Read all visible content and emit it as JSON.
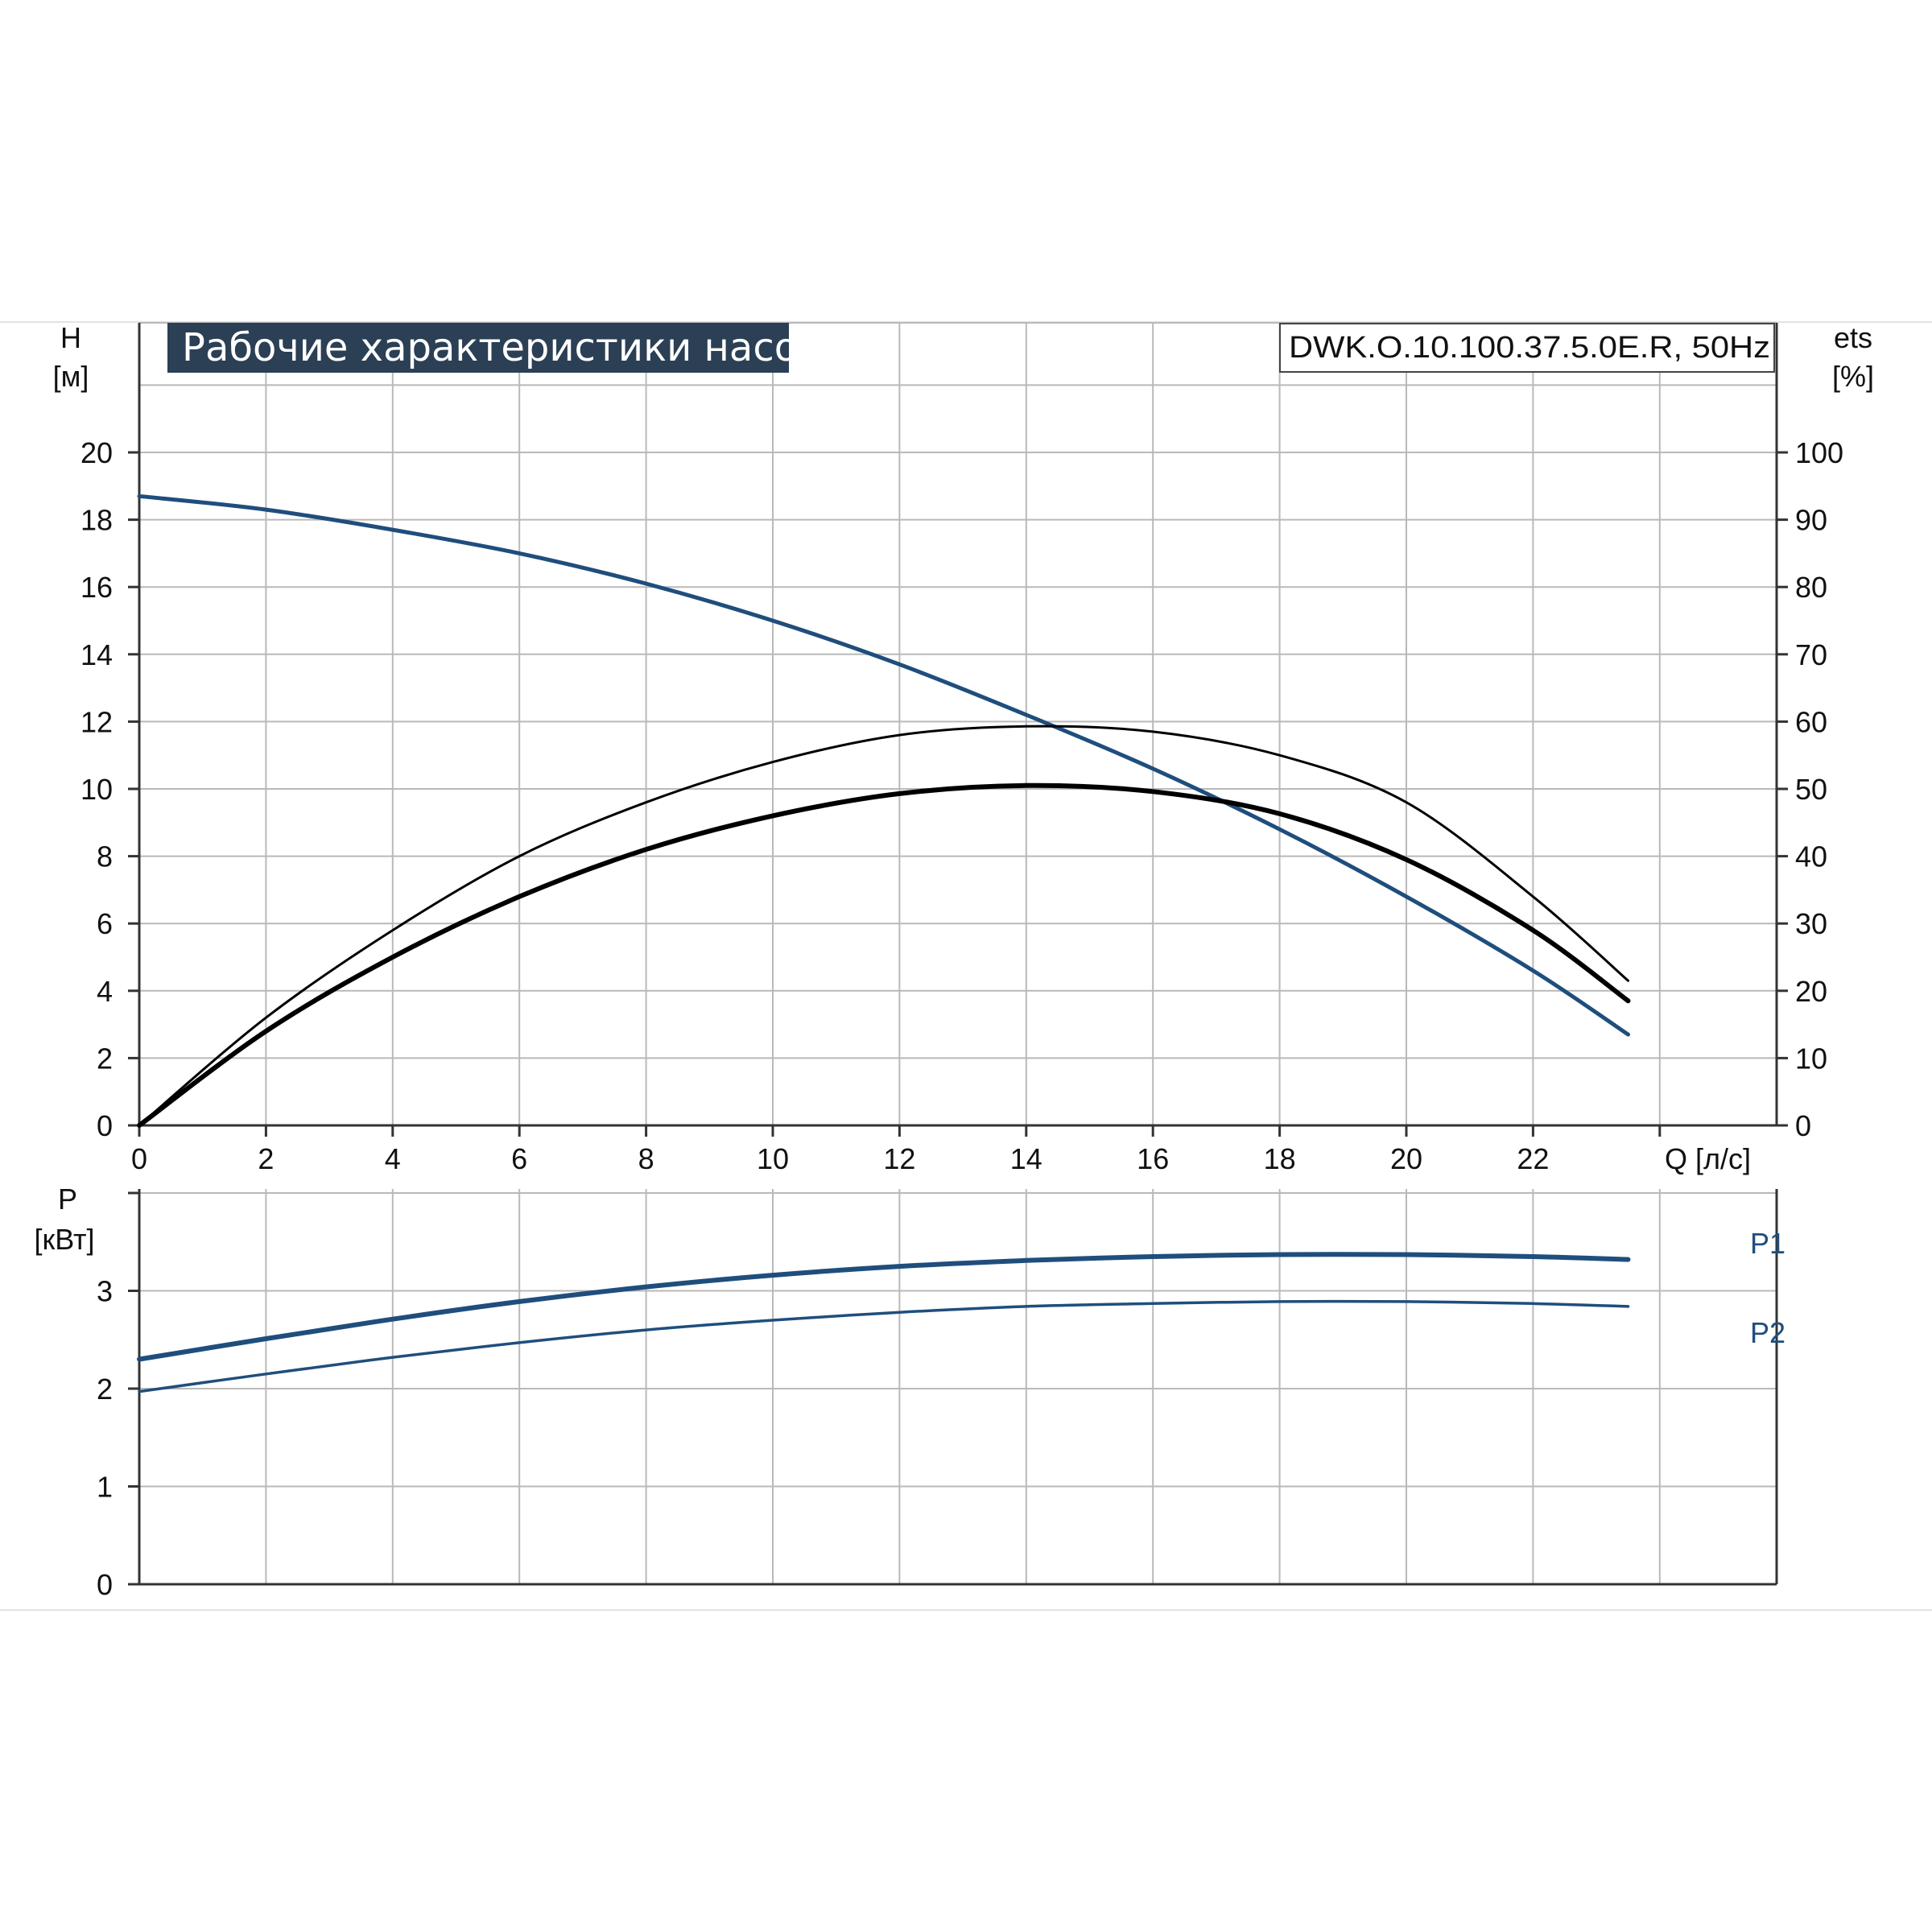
{
  "colors": {
    "blue": "#1f4e7d",
    "black": "#000000",
    "banner_bg": "#2b3f55",
    "grid": "#b9b9b9"
  },
  "chart_data": [
    {
      "type": "line",
      "title": "Рабочие характеристики насоса",
      "model": "DWK.O.10.100.37.5.0E.R, 50Hz",
      "xlabel": "Q [л/с]",
      "ylabel_left": "H",
      "ylabel_left_unit": "[м]",
      "ylabel_right": "ets",
      "ylabel_right_unit": "[%]",
      "xlim": [
        0,
        24
      ],
      "ylim_left": [
        0,
        22
      ],
      "ylim_right": [
        0,
        110
      ],
      "grid": true,
      "x_ticks": [
        "0",
        "2",
        "4",
        "6",
        "8",
        "10",
        "12",
        "14",
        "16",
        "18",
        "20",
        "22"
      ],
      "y_ticks_left": [
        "0",
        "2",
        "4",
        "6",
        "8",
        "10",
        "12",
        "14",
        "16",
        "18",
        "20"
      ],
      "y_ticks_right": [
        "0",
        "10",
        "20",
        "30",
        "40",
        "50",
        "60",
        "70",
        "80",
        "90",
        "100"
      ],
      "series": [
        {
          "axis": "left",
          "color": "#1f4e7d",
          "style": "blue",
          "x": [
            0,
            2,
            4,
            6,
            8,
            10,
            12,
            14,
            16,
            18,
            20,
            22,
            23.5
          ],
          "y": [
            18.7,
            18.3,
            17.7,
            17.0,
            16.1,
            15.0,
            13.7,
            12.2,
            10.6,
            8.8,
            6.8,
            4.6,
            2.7
          ]
        },
        {
          "axis": "right",
          "color": "#000000",
          "style": "thin",
          "x": [
            0,
            2,
            4,
            6,
            8,
            10,
            12,
            14,
            16,
            18,
            20,
            22,
            23.5
          ],
          "y": [
            0,
            16,
            29,
            40,
            48,
            54,
            58,
            59.3,
            58.5,
            55,
            48,
            34,
            21.5
          ]
        },
        {
          "axis": "right",
          "color": "#000000",
          "style": "thick",
          "x": [
            0,
            2,
            4,
            6,
            8,
            10,
            12,
            14,
            16,
            18,
            20,
            22,
            23.5
          ],
          "y": [
            0,
            14,
            25,
            34,
            41,
            46,
            49.3,
            50.5,
            49.6,
            46.3,
            39.5,
            29,
            18.5
          ]
        }
      ]
    },
    {
      "type": "line",
      "ylabel": "P",
      "ylabel_unit": "[кВт]",
      "xlim": [
        0,
        24
      ],
      "ylim": [
        0,
        4
      ],
      "grid": true,
      "y_ticks": [
        "0",
        "1",
        "2",
        "3"
      ],
      "series": [
        {
          "name": "P1",
          "color": "#1f4e7d",
          "style": "thick",
          "x": [
            0,
            2,
            4,
            6,
            8,
            10,
            12,
            14,
            16,
            18,
            20,
            22,
            23.5
          ],
          "y": [
            2.3,
            2.51,
            2.71,
            2.89,
            3.04,
            3.16,
            3.25,
            3.31,
            3.35,
            3.37,
            3.37,
            3.35,
            3.32
          ]
        },
        {
          "name": "P2",
          "color": "#1f4e7d",
          "style": "thin",
          "x": [
            0,
            2,
            4,
            6,
            8,
            10,
            12,
            14,
            16,
            18,
            20,
            22,
            23.5
          ],
          "y": [
            1.97,
            2.15,
            2.32,
            2.47,
            2.6,
            2.7,
            2.78,
            2.84,
            2.87,
            2.89,
            2.89,
            2.87,
            2.84
          ]
        }
      ]
    }
  ]
}
